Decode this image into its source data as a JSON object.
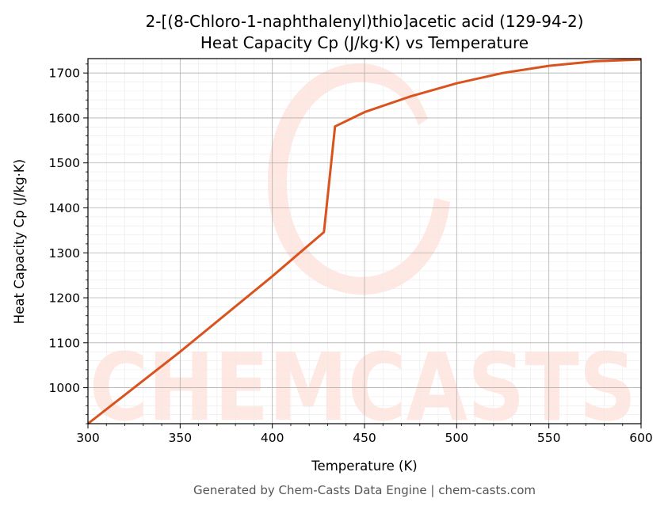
{
  "chart_data": {
    "type": "line",
    "title": "2-[(8-Chloro-1-naphthalenyl)thio]acetic acid (129-94-2)",
    "subtitle": "Heat Capacity Cp (J/kg·K) vs Temperature",
    "xlabel": "Temperature (K)",
    "ylabel": "Heat Capacity Cp (J/kg·K)",
    "xlim": [
      300,
      600
    ],
    "ylim": [
      920,
      1732
    ],
    "x_ticks": [
      300,
      350,
      400,
      450,
      500,
      550,
      600
    ],
    "y_ticks": [
      1000,
      1100,
      1200,
      1300,
      1400,
      1500,
      1600,
      1700
    ],
    "grid": true,
    "line_color": "#d9531e",
    "series": [
      {
        "x": [
          300,
          350,
          400,
          428,
          434,
          450,
          475,
          500,
          525,
          550,
          575,
          600
        ],
        "y": [
          920,
          1080,
          1248,
          1346,
          1581,
          1613,
          1648,
          1677,
          1700,
          1716,
          1726,
          1730
        ]
      }
    ]
  },
  "watermark": {
    "text": "CHEMCASTS",
    "color": "#ffe3dd"
  },
  "footer": "Generated by Chem-Casts Data Engine | chem-casts.com"
}
